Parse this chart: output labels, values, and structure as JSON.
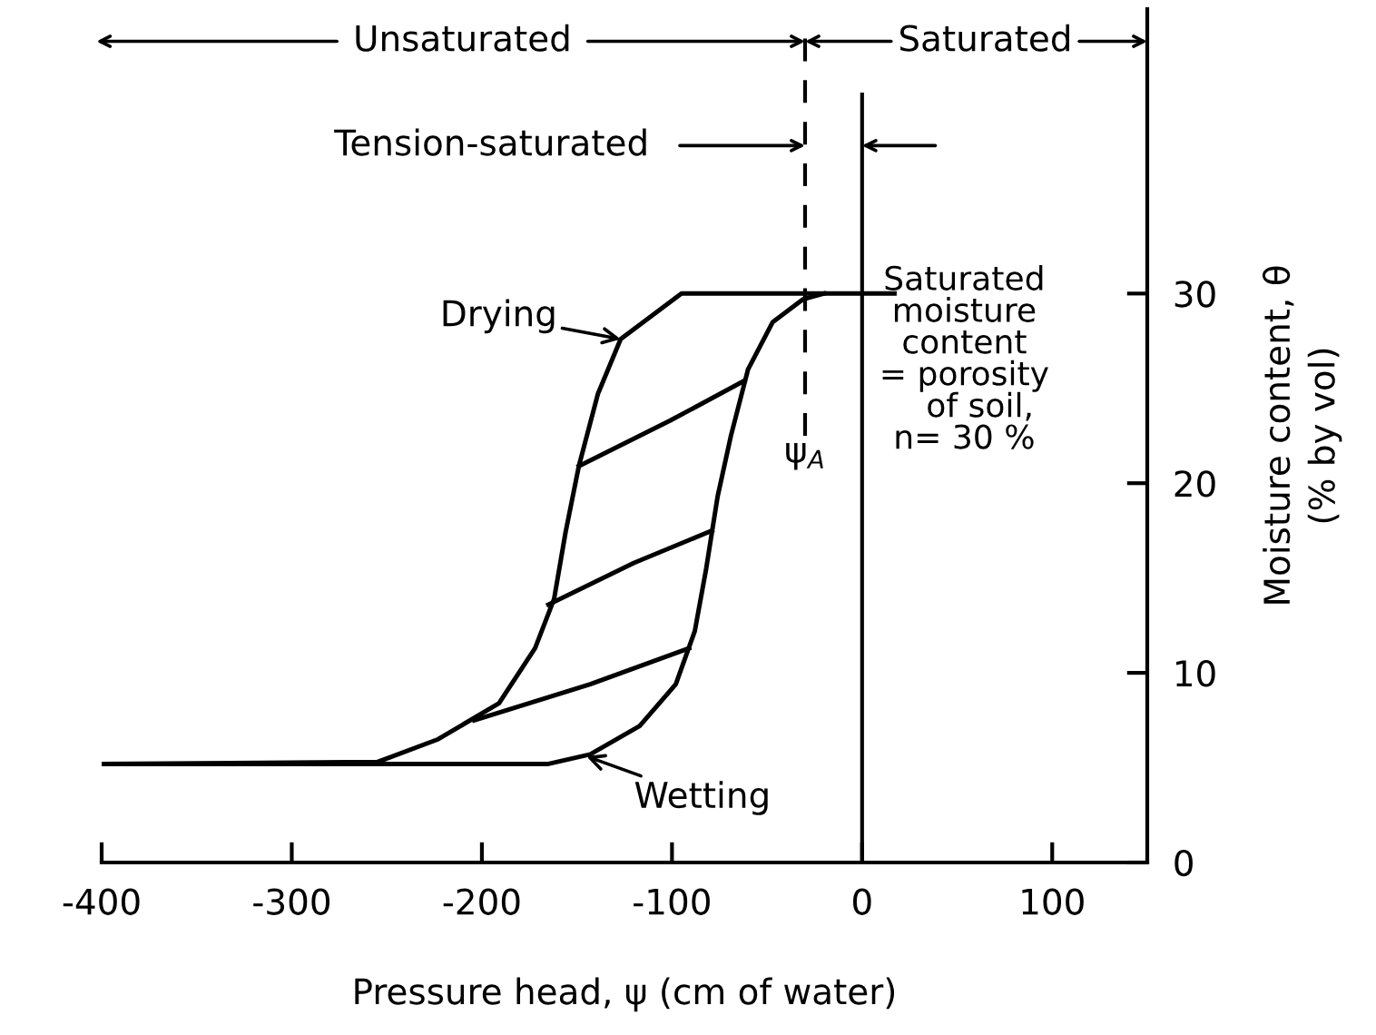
{
  "chart_data": {
    "type": "line",
    "xlabel": "Pressure head, ψ (cm of water)",
    "ylabel": "Moisture content, θ\n(% by vol)",
    "xlim": [
      -400,
      150
    ],
    "xticks": [
      -400,
      -300,
      -200,
      -100,
      0,
      100
    ],
    "ylim": [
      0,
      45
    ],
    "yticks": [
      0,
      10,
      20,
      30
    ],
    "grid": false,
    "legend": false,
    "marker": "none",
    "line_style": "solid",
    "series": [
      {
        "color": "#000000",
        "x": [
          17,
          -20,
          -95,
          -127,
          -139,
          -149,
          -156,
          -162,
          -172,
          -191,
          -223,
          -255,
          -399
        ],
        "values": [
          30,
          30,
          30,
          27.6,
          24.7,
          20.9,
          17.4,
          13.9,
          11.3,
          8.4,
          6.5,
          5.3,
          5.2
        ]
      },
      {
        "color": "#000000",
        "x": [
          -399,
          -165,
          -143,
          -117,
          -98,
          -88,
          -82,
          -76,
          -69,
          -60,
          -47,
          -31,
          -20
        ],
        "values": [
          5.2,
          5.2,
          5.7,
          7.2,
          9.4,
          12.2,
          15.5,
          19.3,
          22.5,
          26,
          28.5,
          29.7,
          30
        ]
      },
      {
        "color": "#000000",
        "x": [
          -149,
          -101,
          -62
        ],
        "values": [
          20.9,
          23.3,
          25.4
        ]
      },
      {
        "color": "#000000",
        "x": [
          -165,
          -120,
          -79
        ],
        "values": [
          13.6,
          15.8,
          17.5
        ]
      },
      {
        "color": "#000000",
        "x": [
          -204,
          -143,
          -91
        ],
        "values": [
          7.5,
          9.4,
          11.3
        ]
      }
    ],
    "ref_lines": [
      {
        "axis": "x",
        "value": 0,
        "color": "#000000",
        "line_style": "solid"
      },
      {
        "axis": "x",
        "value": -30,
        "label": "ψ$_{A}$",
        "color": "#000000",
        "line_style": "dashed"
      }
    ],
    "annotations": [
      {
        "text": "Unsaturated",
        "x": -30,
        "y": 43.3
      },
      {
        "text": "Saturated",
        "x": -30,
        "y": 43.3
      },
      "Tension-saturated",
      {
        "text": "Drying",
        "x": -127,
        "y": 27.6
      },
      {
        "text": "Wetting",
        "x": -145,
        "y": 5.6
      },
      "Saturated\nmoisture\ncontent\n= porosity\n   of soil,\nn= 30 %"
    ]
  }
}
